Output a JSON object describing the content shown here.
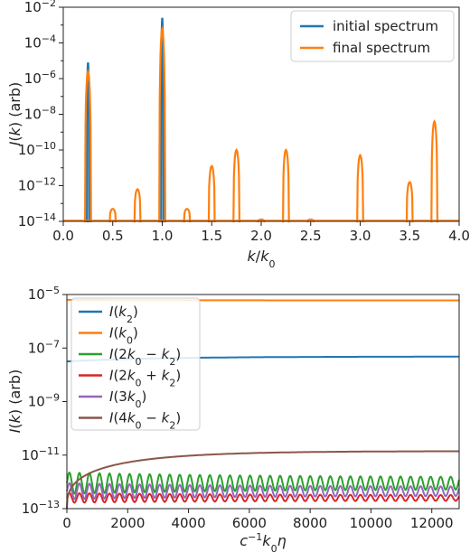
{
  "chart_data": [
    {
      "type": "line",
      "xlabel": "k/k0",
      "ylabel": "I(k) (arb)",
      "xlim": [
        0.0,
        4.0
      ],
      "ylim_log10": [
        -14,
        -2
      ],
      "y_scale": "log",
      "x_ticks": [
        "0.0",
        "0.5",
        "1.0",
        "1.5",
        "2.0",
        "2.5",
        "3.0",
        "3.5",
        "4.0"
      ],
      "y_ticks": [
        -14,
        -12,
        -10,
        -8,
        -6,
        -4,
        -2
      ],
      "legend_position": "top-right",
      "series": [
        {
          "name": "initial spectrum",
          "color": "#1f77b4",
          "peaks": [
            {
              "k": 0.25,
              "log10_I": -5.1
            },
            {
              "k": 1.0,
              "log10_I": -2.6
            }
          ]
        },
        {
          "name": "final spectrum",
          "color": "#ff7f0e",
          "peaks": [
            {
              "k": 0.25,
              "log10_I": -5.6
            },
            {
              "k": 1.0,
              "log10_I": -3.2
            },
            {
              "k": 0.5,
              "log10_I": -13.3
            },
            {
              "k": 0.75,
              "log10_I": -12.2
            },
            {
              "k": 1.25,
              "log10_I": -13.3
            },
            {
              "k": 1.5,
              "log10_I": -10.9
            },
            {
              "k": 1.75,
              "log10_I": -10.0
            },
            {
              "k": 2.0,
              "log10_I": -13.9
            },
            {
              "k": 2.25,
              "log10_I": -10.0
            },
            {
              "k": 2.5,
              "log10_I": -13.9
            },
            {
              "k": 3.0,
              "log10_I": -10.3
            },
            {
              "k": 3.5,
              "log10_I": -11.8
            },
            {
              "k": 3.75,
              "log10_I": -8.4
            }
          ]
        }
      ]
    },
    {
      "type": "line",
      "xlabel": "c^-1 k0 η",
      "ylabel": "I(k) (arb)",
      "xlim": [
        0,
        12900
      ],
      "ylim_log10": [
        -13,
        -5
      ],
      "y_scale": "log",
      "x_ticks": [
        "0",
        "2000",
        "4000",
        "6000",
        "8000",
        "10000",
        "12000"
      ],
      "y_ticks": [
        -13,
        -11,
        -9,
        -7,
        -5
      ],
      "legend_position": "top-left",
      "series": [
        {
          "name": "I(k2)",
          "color": "#1f77b4",
          "log10_start": -7.5,
          "log10_end": -7.32,
          "oscillation": 0
        },
        {
          "name": "I(k0)",
          "color": "#ff7f0e",
          "log10_start": -5.2,
          "log10_end": -5.22,
          "oscillation": 0
        },
        {
          "name": "I(2k0 − k2)",
          "color": "#2ca02c",
          "log10_mean": -12.05,
          "log10_amplitude": 0.4,
          "period": 330
        },
        {
          "name": "I(2k0 + k2)",
          "color": "#d62728",
          "log10_mean": -12.6,
          "log10_amplitude": 0.18,
          "period": 330
        },
        {
          "name": "I(3k0)",
          "color": "#9467bd",
          "log10_mean": -12.35,
          "log10_amplitude": 0.3,
          "period": 330
        },
        {
          "name": "I(4k0 − k2)",
          "color": "#8c564b",
          "log10_start": -13.0,
          "log10_end": -10.85,
          "oscillation": 0
        }
      ]
    }
  ]
}
